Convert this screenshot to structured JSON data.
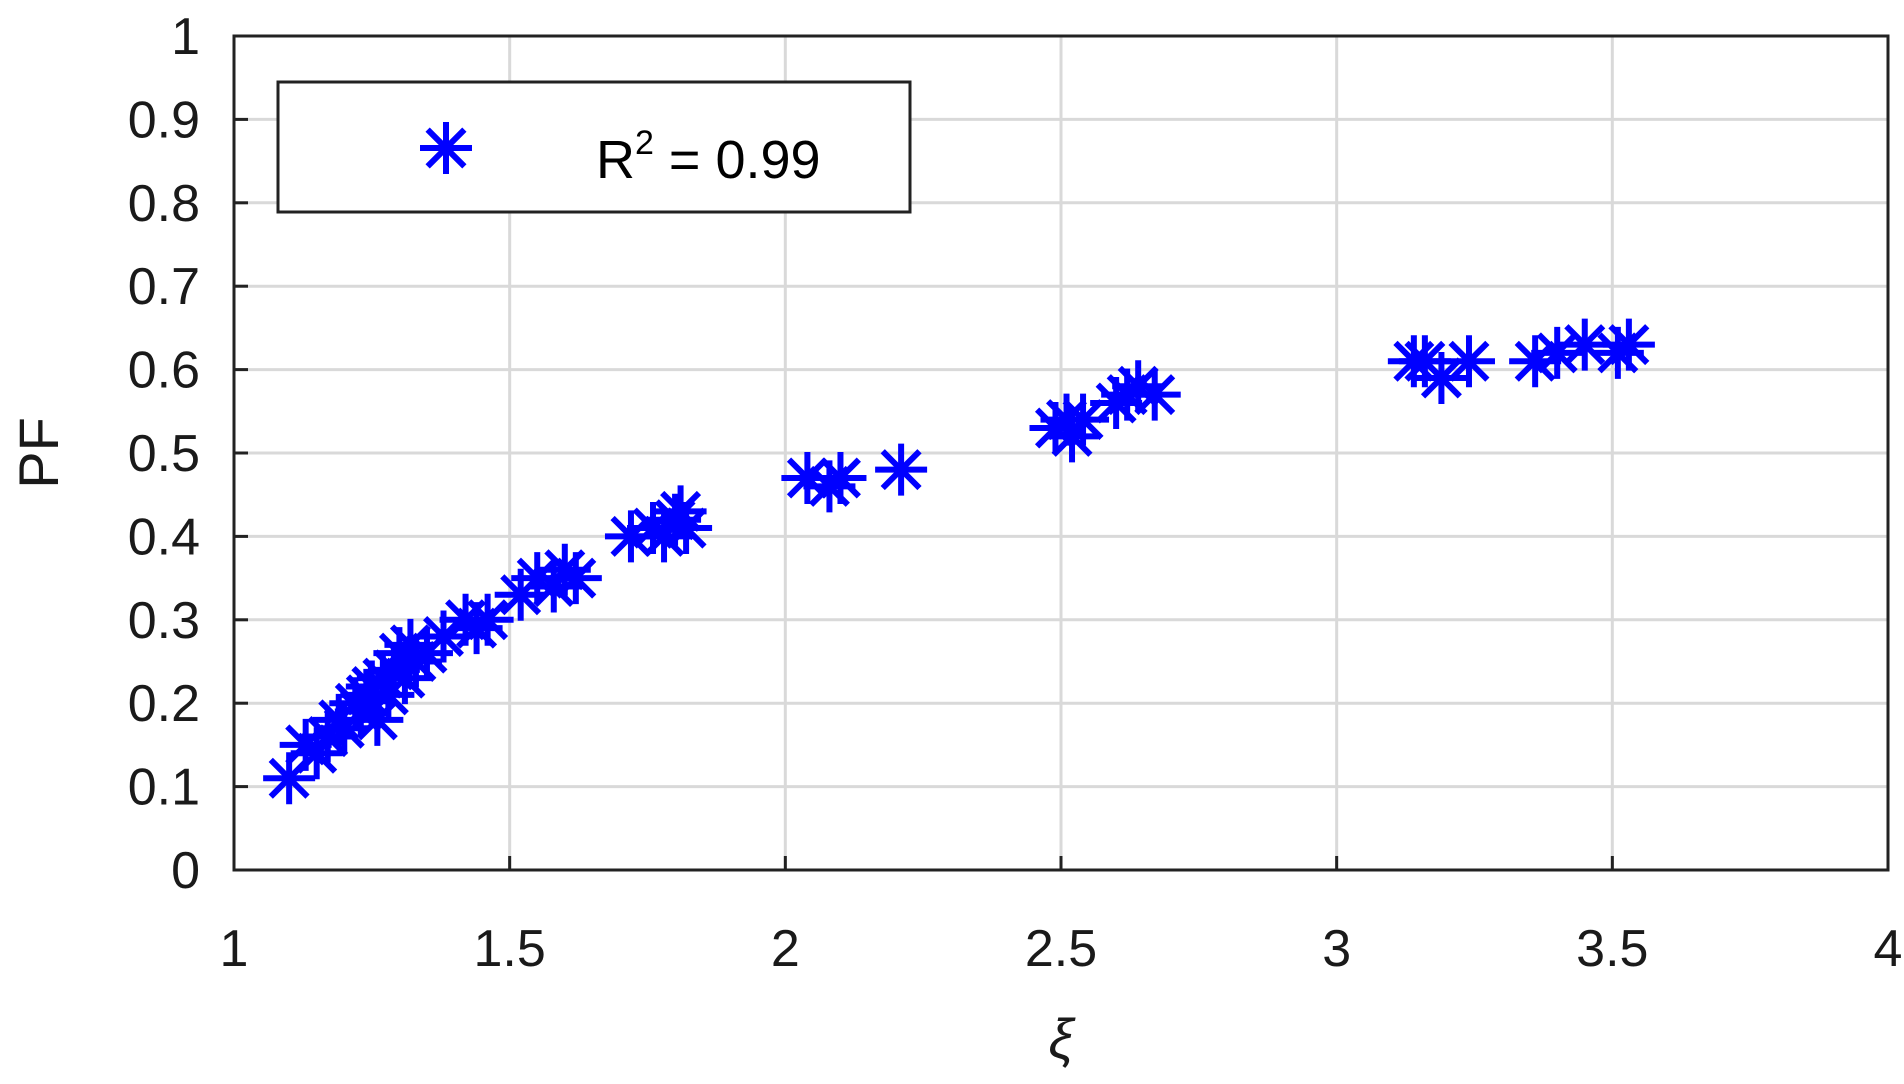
{
  "chart_data": {
    "type": "scatter",
    "title": "",
    "xlabel": "ξ",
    "ylabel": "PF",
    "xlim": [
      1,
      4
    ],
    "ylim": [
      0,
      1
    ],
    "grid": true,
    "x_ticks": [
      "1",
      "1.5",
      "2",
      "2.5",
      "3",
      "3.5",
      "4"
    ],
    "y_ticks": [
      "0",
      "0.1",
      "0.2",
      "0.3",
      "0.4",
      "0.5",
      "0.6",
      "0.7",
      "0.8",
      "0.9",
      "1"
    ],
    "marker": "asterisk",
    "marker_color": "#0000ff",
    "legend": {
      "position": "top-left",
      "label_base": "R",
      "label_sup": "2",
      "label_rest": " = 0.99"
    },
    "series": [
      {
        "points": [
          [
            1.1,
            0.11
          ],
          [
            1.13,
            0.15
          ],
          [
            1.15,
            0.14
          ],
          [
            1.17,
            0.16
          ],
          [
            1.19,
            0.18
          ],
          [
            1.2,
            0.17
          ],
          [
            1.22,
            0.2
          ],
          [
            1.23,
            0.19
          ],
          [
            1.24,
            0.21
          ],
          [
            1.25,
            0.22
          ],
          [
            1.26,
            0.18
          ],
          [
            1.27,
            0.23
          ],
          [
            1.28,
            0.21
          ],
          [
            1.29,
            0.24
          ],
          [
            1.3,
            0.26
          ],
          [
            1.31,
            0.23
          ],
          [
            1.32,
            0.27
          ],
          [
            1.33,
            0.25
          ],
          [
            1.35,
            0.26
          ],
          [
            1.38,
            0.28
          ],
          [
            1.42,
            0.3
          ],
          [
            1.44,
            0.29
          ],
          [
            1.46,
            0.3
          ],
          [
            1.52,
            0.33
          ],
          [
            1.55,
            0.35
          ],
          [
            1.58,
            0.34
          ],
          [
            1.6,
            0.36
          ],
          [
            1.62,
            0.35
          ],
          [
            1.72,
            0.4
          ],
          [
            1.76,
            0.41
          ],
          [
            1.78,
            0.4
          ],
          [
            1.8,
            0.42
          ],
          [
            1.81,
            0.43
          ],
          [
            1.82,
            0.41
          ],
          [
            2.04,
            0.47
          ],
          [
            2.08,
            0.46
          ],
          [
            2.1,
            0.47
          ],
          [
            2.21,
            0.48
          ],
          [
            2.49,
            0.53
          ],
          [
            2.51,
            0.54
          ],
          [
            2.52,
            0.52
          ],
          [
            2.54,
            0.54
          ],
          [
            2.6,
            0.56
          ],
          [
            2.62,
            0.57
          ],
          [
            2.64,
            0.58
          ],
          [
            2.67,
            0.57
          ],
          [
            3.14,
            0.61
          ],
          [
            3.16,
            0.61
          ],
          [
            3.19,
            0.59
          ],
          [
            3.24,
            0.61
          ],
          [
            3.36,
            0.61
          ],
          [
            3.4,
            0.62
          ],
          [
            3.45,
            0.63
          ],
          [
            3.51,
            0.62
          ],
          [
            3.53,
            0.63
          ]
        ]
      }
    ]
  }
}
